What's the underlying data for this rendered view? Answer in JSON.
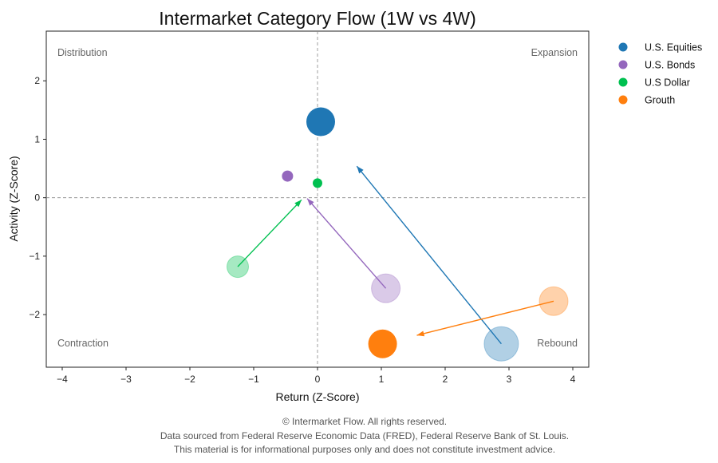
{
  "chart_data": {
    "type": "scatter",
    "title": "Intermarket Category Flow (1W vs 4W)",
    "xlabel": "Return (Z-Score)",
    "ylabel": "Activity (Z-Score)",
    "xlim": [
      -4.25,
      4.25
    ],
    "ylim": [
      -2.9,
      2.85
    ],
    "xticks": [
      -4,
      -3,
      -2,
      -1,
      0,
      1,
      2,
      3,
      4
    ],
    "yticks": [
      -2,
      -1,
      0,
      1,
      2
    ],
    "grid": false,
    "reference_lines": {
      "x": 0,
      "y": 0,
      "style": "dashed"
    },
    "quadrant_labels": {
      "top_left": "Distribution",
      "top_right": "Expansion",
      "bottom_left": "Contraction",
      "bottom_right": "Rebound"
    },
    "legend_position": "outside-top-right",
    "series": [
      {
        "name": "U.S. Equities",
        "color": "#1f77b4",
        "current": {
          "x": 0.05,
          "y": 1.3
        },
        "previous": {
          "x": 2.88,
          "y": -2.5
        },
        "current_size": "large",
        "previous_size": "extra-large"
      },
      {
        "name": "U.S. Bonds",
        "color": "#9467bd",
        "current": {
          "x": -0.47,
          "y": 0.37
        },
        "previous": {
          "x": 1.07,
          "y": -1.55
        },
        "current_size": "small",
        "previous_size": "large"
      },
      {
        "name": "U.S Dollar",
        "color": "#00c050",
        "current": {
          "x": 0.0,
          "y": 0.25
        },
        "previous": {
          "x": -1.25,
          "y": -1.18
        },
        "current_size": "tiny",
        "previous_size": "medium"
      },
      {
        "name": "Grouth",
        "color": "#ff7f0e",
        "current": {
          "x": 1.02,
          "y": -2.5
        },
        "previous": {
          "x": 3.7,
          "y": -1.77
        },
        "current_size": "large",
        "previous_size": "large"
      }
    ]
  },
  "footer": {
    "line1": "© Intermarket Flow. All rights reserved.",
    "line2": "Data sourced from Federal Reserve Economic Data (FRED), Federal Reserve Bank of St. Louis.",
    "line3": "This material is for informational purposes only and does not constitute investment advice."
  }
}
